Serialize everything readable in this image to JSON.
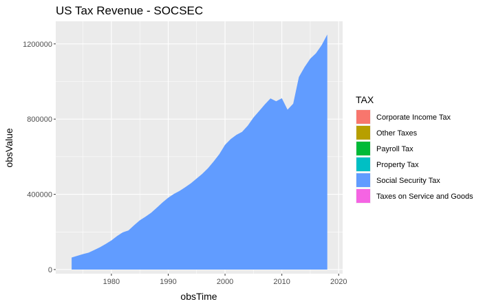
{
  "chart_data": {
    "type": "area",
    "title": "US Tax Revenue - SOCSEC",
    "xlabel": "obsTime",
    "ylabel": "obsValue",
    "xlim": [
      1970.2,
      2020.7
    ],
    "ylim": [
      -22000,
      1320000
    ],
    "x_ticks": [
      1980,
      1990,
      2000,
      2010,
      2020
    ],
    "y_ticks": [
      0,
      400000,
      800000,
      1200000
    ],
    "x_tick_labels": [
      "1980",
      "1990",
      "2000",
      "2010",
      "2020"
    ],
    "y_tick_labels": [
      "0",
      "400000",
      "800000",
      "1200000"
    ],
    "grid": true,
    "legend": {
      "title": "TAX",
      "position": "right",
      "items": [
        {
          "label": "Corporate Income Tax",
          "color": "#F8766D"
        },
        {
          "label": "Other Taxes",
          "color": "#B79F00"
        },
        {
          "label": "Payroll Tax",
          "color": "#00BA38"
        },
        {
          "label": "Property Tax",
          "color": "#00BFC4"
        },
        {
          "label": "Social Security Tax",
          "color": "#619CFF"
        },
        {
          "label": "Taxes on Service and Goods",
          "color": "#F564E3"
        }
      ]
    },
    "series": [
      {
        "name": "Social Security Tax",
        "color": "#619CFF",
        "x": [
          1973,
          1974,
          1975,
          1976,
          1977,
          1978,
          1979,
          1980,
          1981,
          1982,
          1983,
          1984,
          1985,
          1986,
          1987,
          1988,
          1989,
          1990,
          1991,
          1992,
          1993,
          1994,
          1995,
          1996,
          1997,
          1998,
          1999,
          2000,
          2001,
          2002,
          2003,
          2004,
          2005,
          2006,
          2007,
          2008,
          2009,
          2010,
          2011,
          2012,
          2013,
          2014,
          2015,
          2016,
          2017,
          2018
        ],
        "values": [
          64000,
          73000,
          82000,
          90000,
          104000,
          119000,
          136000,
          155000,
          178000,
          198000,
          208000,
          236000,
          262000,
          281000,
          302000,
          329000,
          357000,
          382000,
          402000,
          418000,
          438000,
          459000,
          484000,
          509000,
          539000,
          575000,
          614000,
          663000,
          694000,
          716000,
          732000,
          765000,
          808000,
          843000,
          878000,
          910000,
          895000,
          911000,
          850000,
          882000,
          1024000,
          1077000,
          1121000,
          1150000,
          1193000,
          1250000
        ]
      }
    ]
  }
}
